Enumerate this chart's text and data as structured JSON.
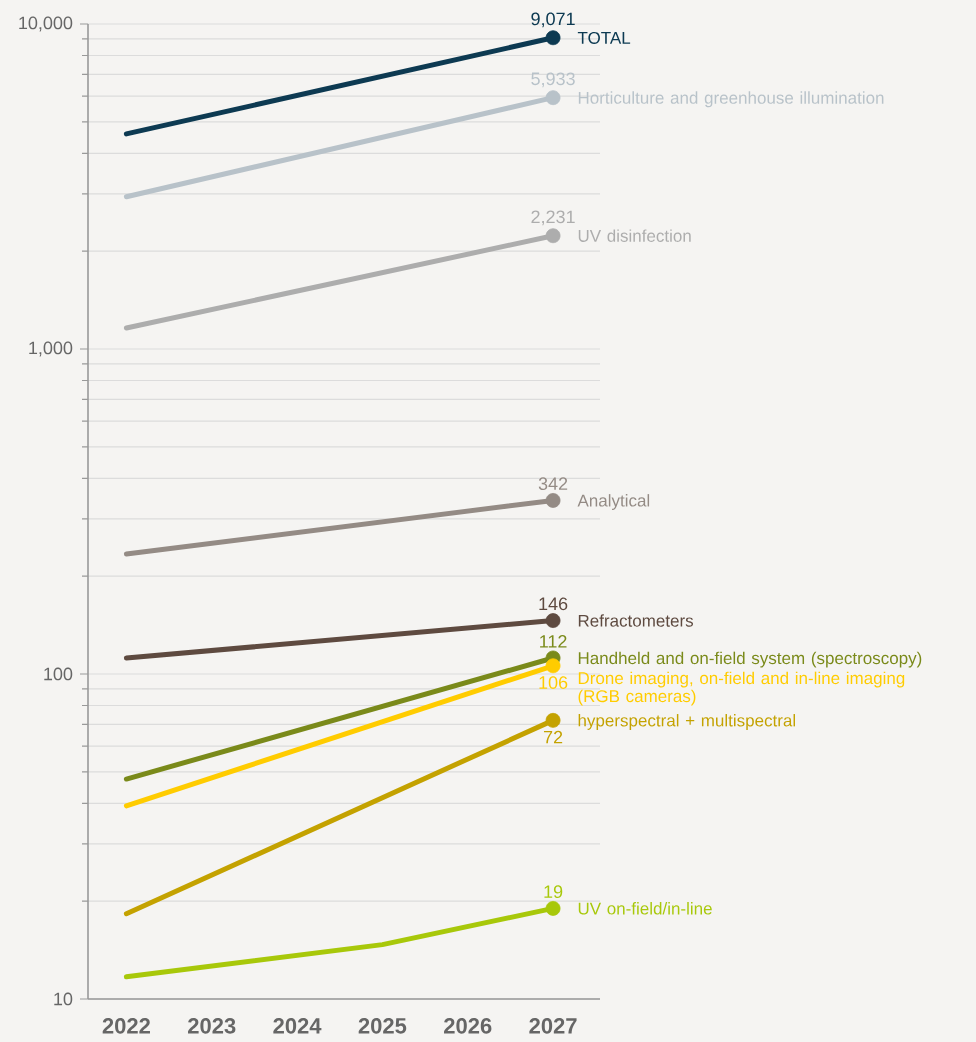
{
  "chart_data": {
    "type": "line",
    "log": "y",
    "grid": "y",
    "line_style": "solid",
    "xlim": [
      2021.55,
      2027.55
    ],
    "xticks": [
      2022,
      2023,
      2024,
      2025,
      2026,
      2027
    ],
    "ylim": [
      10,
      10000
    ],
    "yticks": [
      10,
      100,
      {
        "value": 1000,
        "label": "1,000"
      },
      {
        "value": 10000,
        "label": "10,000"
      }
    ],
    "series": [
      {
        "name": "TOTAL",
        "color": "#0d3a52",
        "x": [
          2022,
          2027
        ],
        "values": [
          4590,
          9071
        ],
        "value_labels": [
          null,
          "9,071"
        ]
      },
      {
        "name": "Horticulture and greenhouse illumination",
        "color": "#b8c2c9",
        "x": [
          2022,
          2027
        ],
        "values": [
          2940,
          5933
        ],
        "value_labels": [
          null,
          "5,933"
        ]
      },
      {
        "name": "UV disinfection",
        "color": "#adadad",
        "x": [
          2022,
          2027
        ],
        "values": [
          1160,
          2231
        ],
        "value_labels": [
          null,
          "2,231"
        ]
      },
      {
        "name": "Analytical",
        "color": "#948b85",
        "x": [
          2022,
          2027
        ],
        "values": [
          234,
          342
        ],
        "value_labels": [
          null,
          "342"
        ]
      },
      {
        "name": "Refractometers",
        "color": "#5e4a40",
        "x": [
          2022,
          2027
        ],
        "values": [
          112,
          146
        ],
        "value_labels": [
          null,
          "146"
        ]
      },
      {
        "name": "Handheld and on-field system (spectroscopy)",
        "color": "#7a8a1a",
        "x": [
          2022,
          2027
        ],
        "values": [
          47.5,
          112
        ],
        "value_labels": [
          null,
          "112"
        ]
      },
      {
        "name": "Drone imaging, on-field and in-line imaging (RGB cameras)",
        "color": "#ffcc00",
        "x": [
          2022,
          2027
        ],
        "values": [
          39.3,
          106
        ],
        "value_labels": [
          null,
          "106"
        ]
      },
      {
        "name": "hyperspectral + multispectral",
        "color": "#c4a200",
        "x": [
          2022,
          2027
        ],
        "values": [
          18.3,
          72
        ],
        "value_labels": [
          null,
          "72"
        ]
      },
      {
        "name": "UV on-field/in-line",
        "color": "#a8c80a",
        "x": [
          2022,
          2025,
          2027
        ],
        "values": [
          11.7,
          14.7,
          19
        ],
        "value_labels": [
          null,
          null,
          "19"
        ]
      }
    ]
  }
}
